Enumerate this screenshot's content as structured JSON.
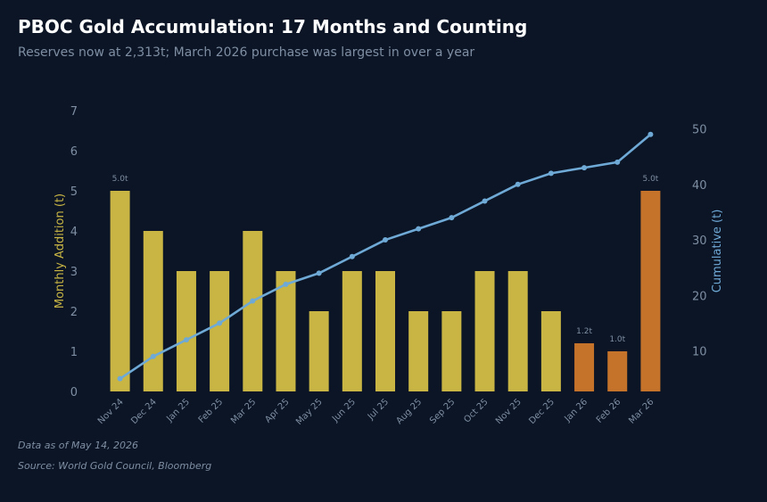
{
  "header": {
    "title": "PBOC Gold Accumulation: 17 Months and Counting",
    "subtitle": "Reserves now at 2,313t; March 2026 purchase was largest in over a year"
  },
  "footer": {
    "date_note": "Data as of May 14, 2026",
    "source_note": "Source: World Gold Council, Bloomberg"
  },
  "colors": {
    "background": "#0b1526",
    "bar_regular": "#c8b544",
    "bar_highlight": "#c5722a",
    "line": "#6fa9d6",
    "left_axis_label": "#c8b544",
    "right_axis_label": "#6fa9d6",
    "tick_text": "#7f8ea3"
  },
  "chart_data": {
    "type": "bar",
    "categories": [
      "Nov 24",
      "Dec 24",
      "Jan 25",
      "Feb 25",
      "Mar 25",
      "Apr 25",
      "May 25",
      "Jun 25",
      "Jul 25",
      "Aug 25",
      "Sep 25",
      "Oct 25",
      "Nov 25",
      "Dec 25",
      "Jan 26",
      "Feb 26",
      "Mar 26"
    ],
    "series": [
      {
        "type": "bar",
        "axis": "left",
        "values": [
          5,
          4,
          3,
          3,
          4,
          3,
          2,
          3,
          3,
          2,
          2,
          3,
          3,
          2,
          1.2,
          1.0,
          5
        ],
        "highlight": [
          false,
          false,
          false,
          false,
          false,
          false,
          false,
          false,
          false,
          false,
          false,
          false,
          false,
          false,
          true,
          true,
          true
        ],
        "data_labels": [
          "5.0t",
          "",
          "",
          "",
          "",
          "",
          "",
          "",
          "",
          "",
          "",
          "",
          "",
          "",
          "1.2t",
          "1.0t",
          "5.0t"
        ]
      },
      {
        "type": "line",
        "axis": "right",
        "values": [
          5,
          9,
          12,
          15,
          19,
          22,
          24,
          27,
          30,
          32,
          34,
          37,
          40,
          42,
          43,
          44,
          49
        ]
      }
    ],
    "ylabel": "Monthly Addition (t)",
    "y2label": "Cumulative (t)",
    "ylim": [
      0,
      7
    ],
    "y2lim": [
      2.7,
      53.3
    ],
    "yticks": [
      0,
      1,
      2,
      3,
      4,
      5,
      6,
      7
    ],
    "y2ticks": [
      10,
      20,
      30,
      40,
      50
    ],
    "grid": false,
    "legend": "none"
  }
}
